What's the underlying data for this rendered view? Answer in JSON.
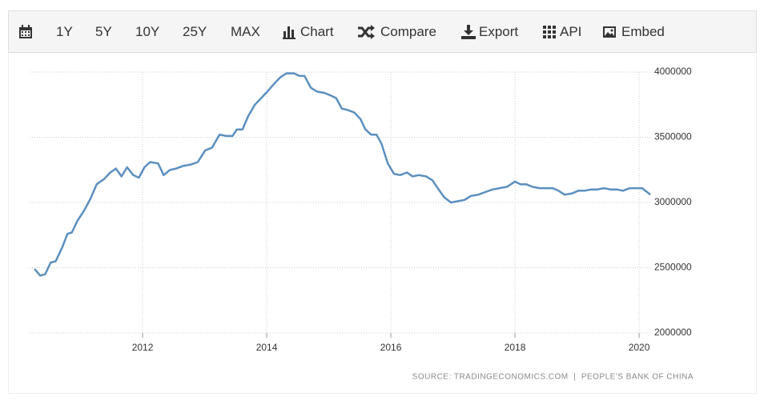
{
  "toolbar": {
    "buttons": [
      "1Y",
      "5Y",
      "10Y",
      "25Y",
      "MAX",
      "Chart",
      "Compare",
      "Export",
      "API",
      "Embed"
    ]
  },
  "chart_data": {
    "type": "line",
    "source": "SOURCE: TRADINGECONOMICS.COM  |  PEOPLE'S BANK OF CHINA",
    "color": "#5b8fbf",
    "grid": true,
    "xlim": [
      2010.18,
      2020.18
    ],
    "xticks": [
      2012,
      2014,
      2016,
      2018,
      2020
    ],
    "ylim": [
      2000000,
      4000000
    ],
    "yticks": [
      2000000,
      2500000,
      3000000,
      3500000,
      4000000
    ],
    "x": [
      2010.26,
      2010.35,
      2010.43,
      2010.52,
      2010.6,
      2010.7,
      2010.79,
      2010.86,
      2010.95,
      2011.06,
      2011.16,
      2011.26,
      2011.38,
      2011.48,
      2011.57,
      2011.66,
      2011.75,
      2011.85,
      2011.94,
      2012.03,
      2012.12,
      2012.25,
      2012.34,
      2012.44,
      2012.54,
      2012.65,
      2012.77,
      2012.89,
      2013.01,
      2013.12,
      2013.24,
      2013.35,
      2013.45,
      2013.52,
      2013.61,
      2013.7,
      2013.81,
      2013.91,
      2014.01,
      2014.12,
      2014.22,
      2014.32,
      2014.44,
      2014.53,
      2014.61,
      2014.71,
      2014.81,
      2014.93,
      2015.03,
      2015.12,
      2015.21,
      2015.3,
      2015.41,
      2015.51,
      2015.59,
      2015.68,
      2015.77,
      2015.85,
      2015.95,
      2016.05,
      2016.15,
      2016.26,
      2016.35,
      2016.45,
      2016.57,
      2016.67,
      2016.77,
      2016.86,
      2016.97,
      2017.08,
      2017.19,
      2017.29,
      2017.41,
      2017.52,
      2017.64,
      2017.75,
      2017.87,
      2018.0,
      2018.09,
      2018.18,
      2018.28,
      2018.4,
      2018.5,
      2018.61,
      2018.7,
      2018.8,
      2018.92,
      2019.02,
      2019.12,
      2019.23,
      2019.33,
      2019.43,
      2019.54,
      2019.64,
      2019.74,
      2019.85,
      2019.95,
      2020.05,
      2020.13,
      2020.18
    ],
    "values": [
      2490000,
      2440000,
      2450000,
      2540000,
      2550000,
      2650000,
      2760000,
      2770000,
      2860000,
      2940000,
      3030000,
      3140000,
      3180000,
      3230000,
      3260000,
      3200000,
      3270000,
      3210000,
      3190000,
      3270000,
      3310000,
      3300000,
      3210000,
      3250000,
      3260000,
      3280000,
      3290000,
      3310000,
      3400000,
      3420000,
      3520000,
      3510000,
      3510000,
      3560000,
      3560000,
      3660000,
      3750000,
      3800000,
      3850000,
      3910000,
      3960000,
      3990000,
      3990000,
      3970000,
      3970000,
      3880000,
      3850000,
      3840000,
      3820000,
      3800000,
      3720000,
      3710000,
      3690000,
      3640000,
      3560000,
      3520000,
      3520000,
      3450000,
      3300000,
      3220000,
      3210000,
      3230000,
      3200000,
      3210000,
      3200000,
      3170000,
      3100000,
      3040000,
      3000000,
      3010000,
      3020000,
      3050000,
      3060000,
      3080000,
      3100000,
      3110000,
      3120000,
      3160000,
      3140000,
      3140000,
      3120000,
      3110000,
      3110000,
      3110000,
      3090000,
      3060000,
      3070000,
      3090000,
      3090000,
      3100000,
      3100000,
      3110000,
      3100000,
      3100000,
      3090000,
      3110000,
      3110000,
      3110000,
      3080000,
      3060000
    ]
  }
}
